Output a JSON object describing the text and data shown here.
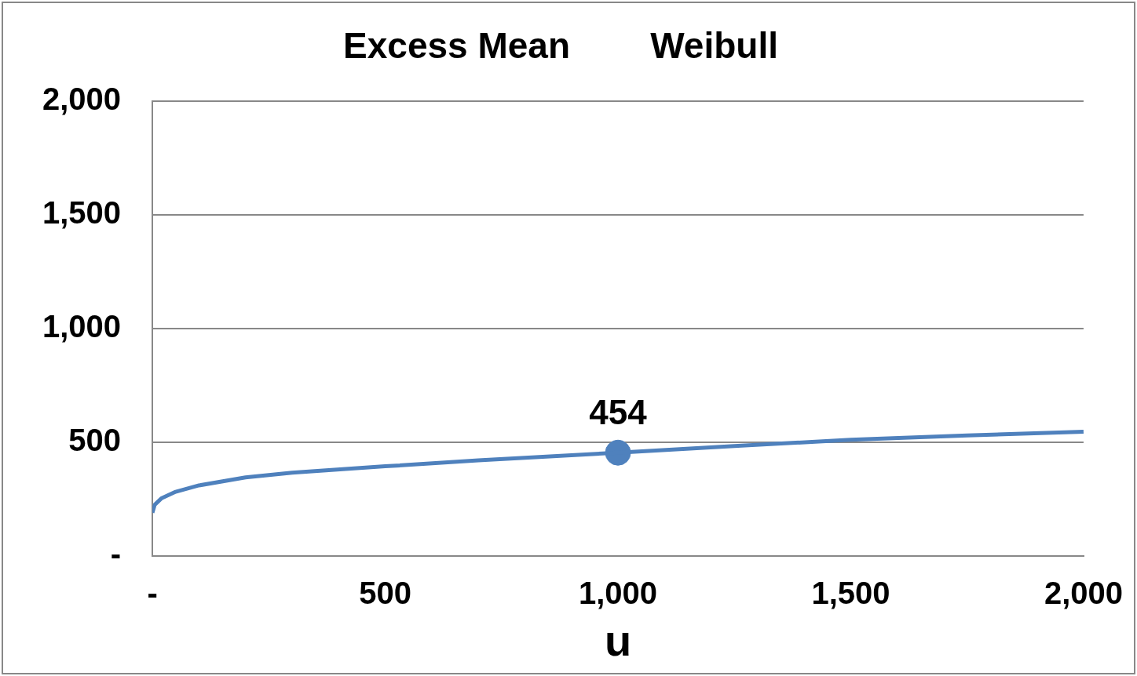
{
  "chart_data": {
    "type": "line",
    "title": "Excess Mean        Weibull",
    "xlabel": "u",
    "xlim": [
      0,
      2000
    ],
    "xticks": [
      {
        "value": 0,
        "label": "-"
      },
      {
        "value": 500,
        "label": "500"
      },
      {
        "value": 1000,
        "label": "1,000"
      },
      {
        "value": 1500,
        "label": "1,500"
      },
      {
        "value": 2000,
        "label": "2,000"
      }
    ],
    "ylim": [
      0,
      2000
    ],
    "yticks": [
      {
        "value": 0,
        "label": "-"
      },
      {
        "value": 500,
        "label": "500"
      },
      {
        "value": 1000,
        "label": "1,000"
      },
      {
        "value": 1500,
        "label": "1,500"
      },
      {
        "value": 2000,
        "label": "2,000"
      }
    ],
    "grid": "y",
    "legend": false,
    "series": [
      {
        "type": "line",
        "color": "#4f81bd",
        "marker": "none",
        "x": [
          0,
          5,
          20,
          50,
          100,
          200,
          300,
          500,
          700,
          1000,
          1250,
          1500,
          1750,
          2000
        ],
        "values": [
          190,
          225,
          254,
          282,
          310,
          345,
          366,
          394,
          420,
          454,
          483,
          511,
          530,
          546
        ]
      },
      {
        "type": "scatter",
        "color": "#4f81bd",
        "marker": "circle",
        "x": [
          1000
        ],
        "values": [
          454
        ],
        "value_labels": [
          "454"
        ]
      }
    ]
  }
}
